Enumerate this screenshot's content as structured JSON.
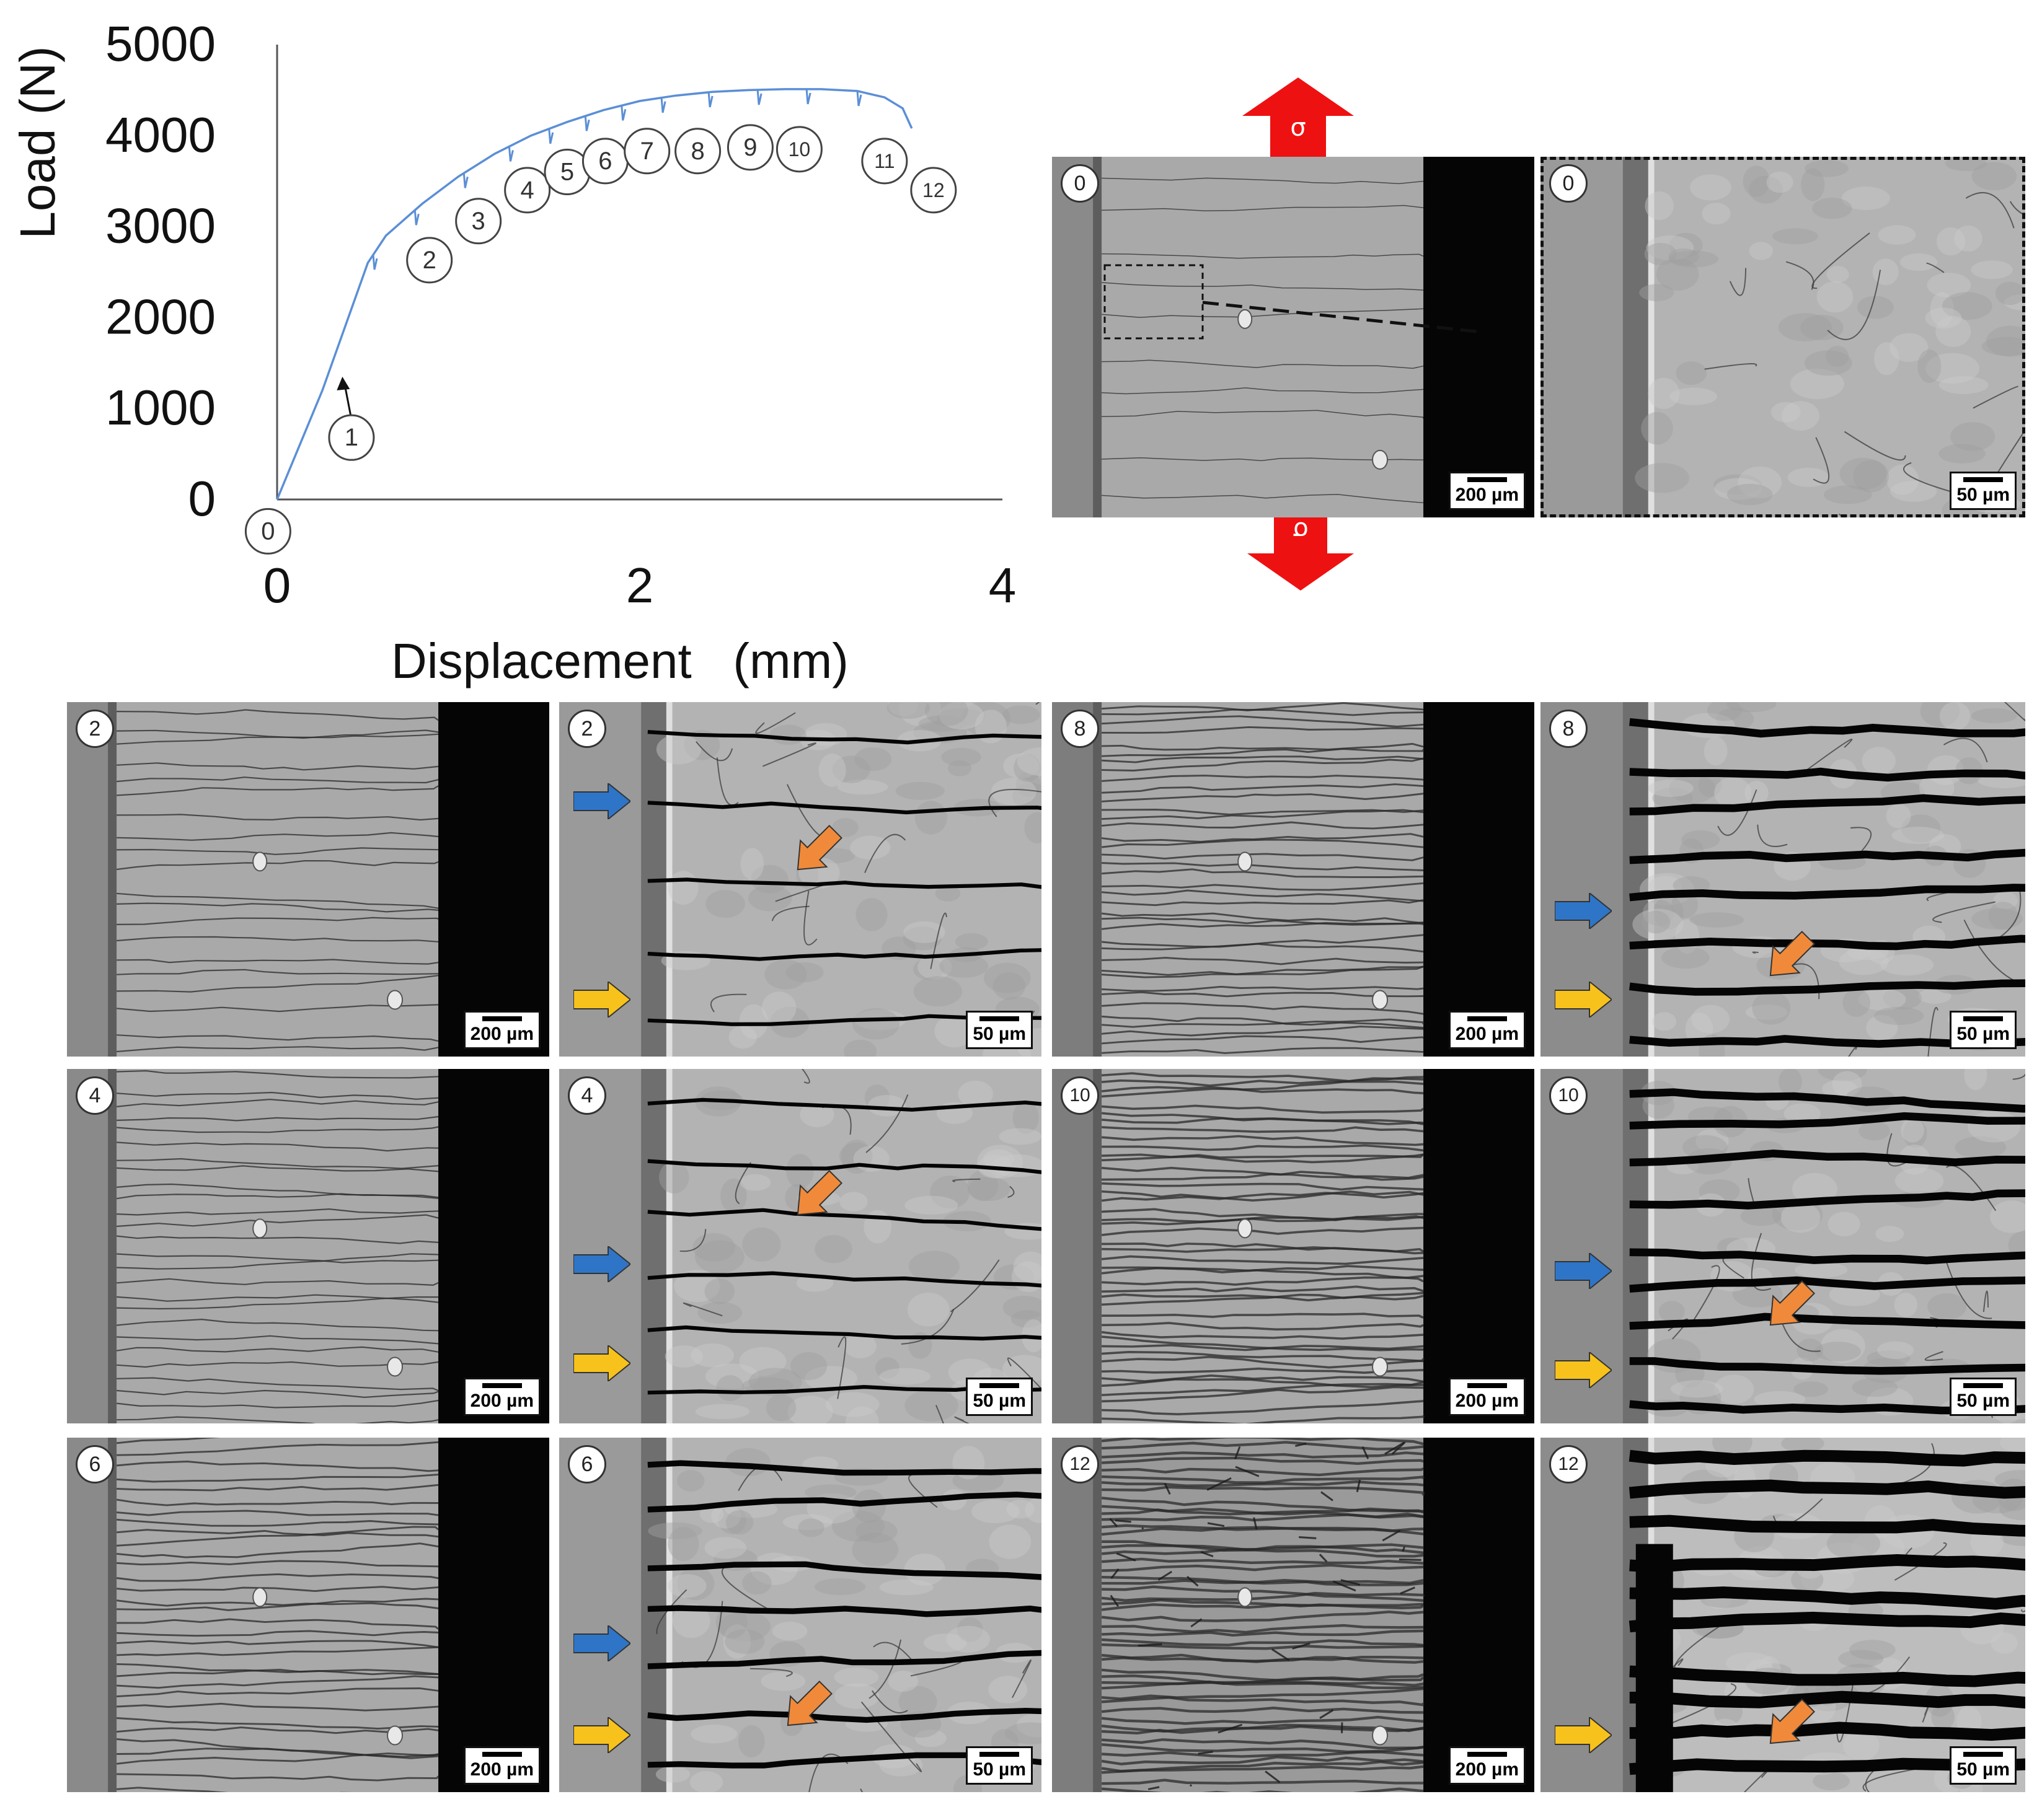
{
  "chart_data": {
    "type": "line",
    "ylabel": "Load (N)",
    "xlabel": "Displacement   (mm)",
    "xlim": [
      0,
      4
    ],
    "ylim": [
      0,
      5000
    ],
    "x_ticks": [
      "0",
      "2",
      "4"
    ],
    "y_ticks": [
      "0",
      "1000",
      "2000",
      "3000",
      "4000",
      "5000"
    ],
    "grid": false,
    "line_color": "#5b8fd6",
    "series": [
      {
        "points": [
          [
            0,
            0
          ],
          [
            0.25,
            1200
          ],
          [
            0.5,
            2600
          ],
          [
            0.6,
            2900
          ],
          [
            0.8,
            3250
          ],
          [
            1.0,
            3550
          ],
          [
            1.2,
            3800
          ],
          [
            1.4,
            4000
          ],
          [
            1.6,
            4150
          ],
          [
            1.8,
            4280
          ],
          [
            2.0,
            4380
          ],
          [
            2.2,
            4440
          ],
          [
            2.4,
            4480
          ],
          [
            2.6,
            4500
          ],
          [
            2.8,
            4510
          ],
          [
            3.0,
            4510
          ],
          [
            3.2,
            4490
          ],
          [
            3.35,
            4420
          ],
          [
            3.45,
            4300
          ],
          [
            3.5,
            4080
          ]
        ]
      }
    ],
    "annotations": [
      {
        "label": "0",
        "x": -0.05,
        "y": -350
      },
      {
        "label": "1",
        "x": 0.41,
        "y": 680
      },
      {
        "label": "2",
        "x": 0.84,
        "y": 2630
      },
      {
        "label": "3",
        "x": 1.11,
        "y": 3060
      },
      {
        "label": "4",
        "x": 1.38,
        "y": 3400
      },
      {
        "label": "5",
        "x": 1.6,
        "y": 3600
      },
      {
        "label": "6",
        "x": 1.81,
        "y": 3720
      },
      {
        "label": "7",
        "x": 2.04,
        "y": 3830
      },
      {
        "label": "8",
        "x": 2.32,
        "y": 3830
      },
      {
        "label": "9",
        "x": 2.61,
        "y": 3870
      },
      {
        "label": "10",
        "x": 2.88,
        "y": 3850
      },
      {
        "label": "11",
        "x": 3.35,
        "y": 3720
      },
      {
        "label": "12",
        "x": 3.62,
        "y": 3400
      }
    ],
    "arrow_annotation": {
      "from": [
        0.41,
        880
      ],
      "to": [
        0.36,
        1350
      ]
    }
  },
  "stress_label": "σ",
  "panels": [
    {
      "id": "p0a",
      "state": "0",
      "scale": "200 µm",
      "cracks": 0,
      "darkness": 0
    },
    {
      "id": "p0b",
      "state": "0",
      "scale": "50 µm",
      "cracks": 0,
      "darkness": 0
    },
    {
      "id": "p2a",
      "state": "2",
      "scale": "200 µm",
      "cracks": 1,
      "darkness": 1
    },
    {
      "id": "p2b",
      "state": "2",
      "scale": "50 µm",
      "cracks": 1,
      "darkness": 1
    },
    {
      "id": "p4a",
      "state": "4",
      "scale": "200 µm",
      "cracks": 2,
      "darkness": 1
    },
    {
      "id": "p4b",
      "state": "4",
      "scale": "50 µm",
      "cracks": 2,
      "darkness": 1
    },
    {
      "id": "p6a",
      "state": "6",
      "scale": "200 µm",
      "cracks": 3,
      "darkness": 2
    },
    {
      "id": "p6b",
      "state": "6",
      "scale": "50 µm",
      "cracks": 3,
      "darkness": 2
    },
    {
      "id": "p8a",
      "state": "8",
      "scale": "200 µm",
      "cracks": 4,
      "darkness": 2
    },
    {
      "id": "p8b",
      "state": "8",
      "scale": "50 µm",
      "cracks": 4,
      "darkness": 3
    },
    {
      "id": "p10a",
      "state": "10",
      "scale": "200 µm",
      "cracks": 5,
      "darkness": 3
    },
    {
      "id": "p10b",
      "state": "10",
      "scale": "50 µm",
      "cracks": 5,
      "darkness": 3
    },
    {
      "id": "p12a",
      "state": "12",
      "scale": "200 µm",
      "cracks": 6,
      "darkness": 4
    },
    {
      "id": "p12b",
      "state": "12",
      "scale": "50 µm",
      "cracks": 6,
      "darkness": 5
    }
  ],
  "arrow_colors": {
    "blue": "#2e75c8",
    "orange": "#f08a3a",
    "yellow": "#f7c21b",
    "red": "#ee1111"
  }
}
